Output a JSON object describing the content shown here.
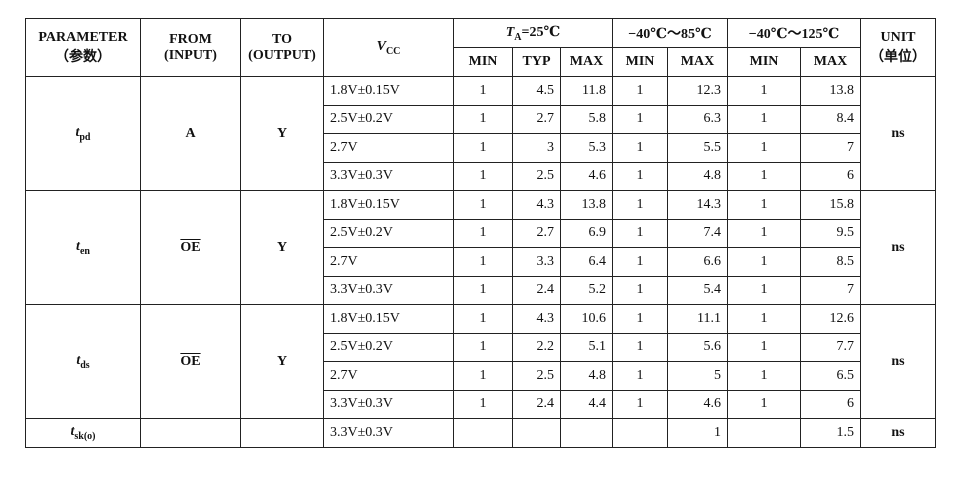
{
  "header": {
    "parameter": [
      "PARAMETER",
      "（参数）"
    ],
    "from": [
      "FROM",
      "(INPUT)"
    ],
    "to": [
      "TO",
      "(OUTPUT)"
    ],
    "vcc": {
      "main": "V",
      "sub": "CC"
    },
    "ranges": [
      {
        "main": "T",
        "sub": "A",
        "rest": "=25℃"
      },
      {
        "text": "−40℃～85℃"
      },
      {
        "text": "−40℃～125℃"
      }
    ],
    "columns": [
      "MIN",
      "TYP",
      "MAX",
      "MIN",
      "MAX",
      "MIN",
      "MAX"
    ],
    "unit": [
      "UNIT",
      "（单位）"
    ]
  },
  "groups": [
    {
      "param": {
        "main": "t",
        "sub": "pd"
      },
      "from": "A",
      "to": "Y",
      "unit": "ns",
      "rows": [
        {
          "vcc": "1.8V±0.15V",
          "values": [
            1,
            4.5,
            11.8,
            1,
            12.3,
            1,
            13.8
          ]
        },
        {
          "vcc": "2.5V±0.2V",
          "values": [
            1,
            2.7,
            5.8,
            1,
            6.3,
            1,
            8.4
          ]
        },
        {
          "vcc": "2.7V",
          "values": [
            1,
            3,
            5.3,
            1,
            5.5,
            1,
            7
          ]
        },
        {
          "vcc": "3.3V±0.3V",
          "values": [
            1,
            2.5,
            4.6,
            1,
            4.8,
            1,
            6
          ]
        }
      ]
    },
    {
      "param": {
        "main": "t",
        "sub": "en"
      },
      "from": "OE",
      "from_overline": true,
      "to": "Y",
      "unit": "ns",
      "rows": [
        {
          "vcc": "1.8V±0.15V",
          "values": [
            1,
            4.3,
            13.8,
            1,
            14.3,
            1,
            15.8
          ]
        },
        {
          "vcc": "2.5V±0.2V",
          "values": [
            1,
            2.7,
            6.9,
            1,
            7.4,
            1,
            9.5
          ]
        },
        {
          "vcc": "2.7V",
          "values": [
            1,
            3.3,
            6.4,
            1,
            6.6,
            1,
            8.5
          ]
        },
        {
          "vcc": "3.3V±0.3V",
          "values": [
            1,
            2.4,
            5.2,
            1,
            5.4,
            1,
            7
          ]
        }
      ]
    },
    {
      "param": {
        "main": "t",
        "sub": "ds"
      },
      "from": "OE",
      "from_overline": true,
      "to": "Y",
      "unit": "ns",
      "rows": [
        {
          "vcc": "1.8V±0.15V",
          "values": [
            1,
            4.3,
            10.6,
            1,
            11.1,
            1,
            12.6
          ]
        },
        {
          "vcc": "2.5V±0.2V",
          "values": [
            1,
            2.2,
            5.1,
            1,
            5.6,
            1,
            7.7
          ]
        },
        {
          "vcc": "2.7V",
          "values": [
            1,
            2.5,
            4.8,
            1,
            5,
            1,
            6.5
          ]
        },
        {
          "vcc": "3.3V±0.3V",
          "values": [
            1,
            2.4,
            4.4,
            1,
            4.6,
            1,
            6
          ]
        }
      ]
    },
    {
      "param": {
        "main": "t",
        "sub": "sk(o)"
      },
      "unit": "ns",
      "rows": [
        {
          "vcc": "3.3V±0.3V",
          "values": [
            null,
            null,
            null,
            null,
            1,
            null,
            1.5
          ]
        }
      ]
    }
  ]
}
